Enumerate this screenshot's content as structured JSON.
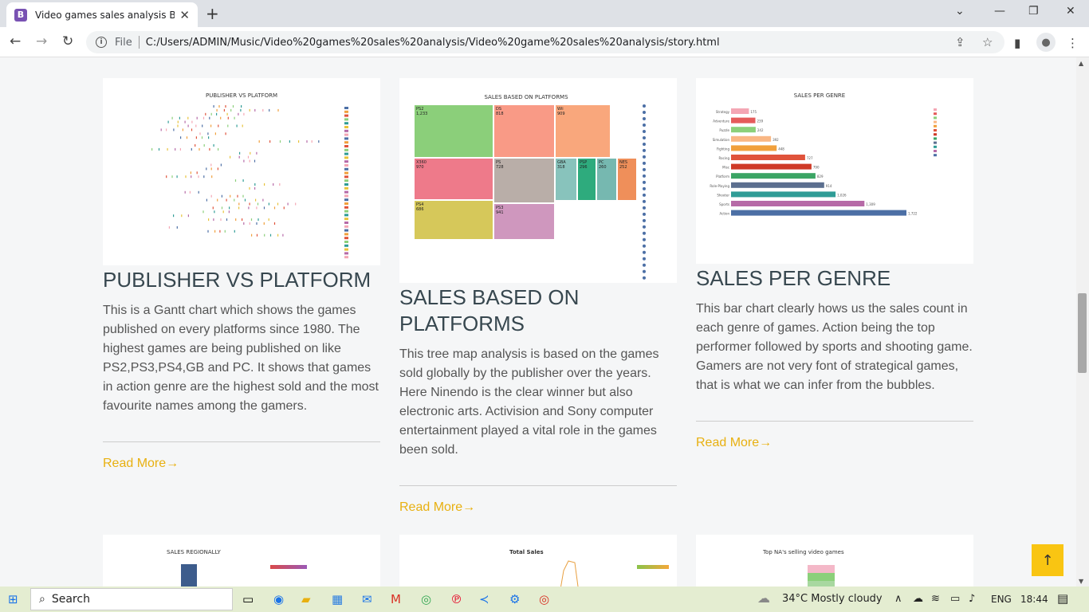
{
  "browser": {
    "tab_title": "Video games sales analysis Bootstrap",
    "file_label": "File",
    "url": "C:/Users/ADMIN/Music/Video%20games%20sales%20analysis/Video%20game%20sales%20analysis/story.html"
  },
  "cards": [
    {
      "thumb_title": "PUBLISHER VS PLATFORM",
      "title": "PUBLISHER VS PLATFORM",
      "desc": "This is a Gantt chart which shows the games published on every platforms since 1980. The highest games are being published on like PS2,PS3,PS4,GB and PC. It shows that games in action genre are the highest sold and the most favourite names among the gamers.",
      "read_more": "Read More→"
    },
    {
      "thumb_title": "SALES BASED ON PLATFORMS",
      "title": "SALES BASED ON PLATFORMS",
      "desc": "This tree map analysis is based on the games sold globally by the publisher over the years. Here Ninendo is the clear winner but also electronic arts. Activision and Sony computer entertainment played a vital role in the games been sold.",
      "read_more": "Read More→"
    },
    {
      "thumb_title": "SALES PER GENRE",
      "title": "SALES PER GENRE",
      "desc": "This bar chart clearly hows us the sales count in each genre of games. Action being the top performer followed by sports and shooting game. Gamers are not very font of strategical games, that is what we can infer from the bubbles.",
      "read_more": "Read More→"
    }
  ],
  "thumb2_tiles": [
    {
      "label": "PS2",
      "value": "1,233",
      "color": "#8bcf7a"
    },
    {
      "label": "DS",
      "value": "818",
      "color": "#f99a86"
    },
    {
      "label": "X360",
      "value": "970",
      "color": "#ee7a8a"
    },
    {
      "label": "PS",
      "value": "728",
      "color": "#b9aea8"
    },
    {
      "label": "PS4",
      "value": "686",
      "color": "#d6c85a"
    },
    {
      "label": "PS3",
      "value": "941",
      "color": "#cf97be"
    },
    {
      "label": "Wii",
      "value": "909",
      "color": "#f9a77c"
    },
    {
      "label": "GBA",
      "value": "318",
      "color": "#88c3bc"
    },
    {
      "label": "PSP",
      "value": "296",
      "color": "#2eab7d"
    },
    {
      "label": "PC",
      "value": "260",
      "color": "#76b8b0"
    },
    {
      "label": "NES",
      "value": "252",
      "color": "#ef8f5a"
    }
  ],
  "thumb3_genres": [
    {
      "name": "Strategy",
      "value": 175,
      "color": "#f4a6b4"
    },
    {
      "name": "Adventure",
      "value": 239,
      "color": "#e55b5b"
    },
    {
      "name": "Puzzle",
      "value": 242,
      "color": "#8bd07a"
    },
    {
      "name": "Simulation",
      "value": 392,
      "color": "#f9b784"
    },
    {
      "name": "Fighting",
      "value": 448,
      "color": "#f1a03c"
    },
    {
      "name": "Racing",
      "value": 727,
      "color": "#e0533b"
    },
    {
      "name": "Misc",
      "value": 790,
      "color": "#cf3a27"
    },
    {
      "name": "Platform",
      "value": 829,
      "color": "#3ba564"
    },
    {
      "name": "Role-Playing",
      "value": 914,
      "color": "#5c6f8f"
    },
    {
      "name": "Shooter",
      "value": 1026,
      "color": "#2f9c96"
    },
    {
      "name": "Sports",
      "value": 1309,
      "color": "#b66aa7"
    },
    {
      "name": "Action",
      "value": 1722,
      "color": "#4c6fa5"
    }
  ],
  "bottom_thumbs": [
    "SALES REGIONALLY",
    "Total Sales",
    "Top NA's selling video games"
  ],
  "taskbar": {
    "search": "Search",
    "weather": "34°C  Mostly cloudy",
    "lang": "ENG",
    "time": "18:44"
  }
}
